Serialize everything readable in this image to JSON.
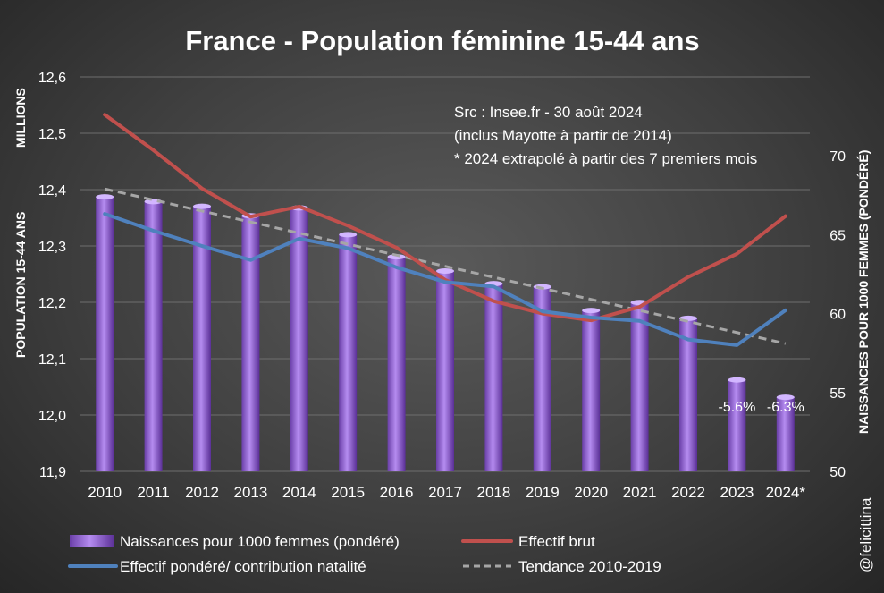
{
  "chart_data": {
    "type": "bar+line",
    "title": "France - Population féminine 15-44 ans",
    "y_left_label": "POPULATION 15-44 ANS",
    "y_left_unit": "MILLIONS",
    "y_right_label": "NAISSANCES POUR 1000 FEMMES (PONDÉRÉ)",
    "credit": "@felicittina",
    "source_lines": [
      "Src : Insee.fr - 30 août 2024",
      "(inclus Mayotte à partir de 2014)",
      "* 2024 extrapolé à partir des 7 premiers mois"
    ],
    "categories": [
      "2010",
      "2011",
      "2012",
      "2013",
      "2014",
      "2015",
      "2016",
      "2017",
      "2018",
      "2019",
      "2020",
      "2021",
      "2022",
      "2023",
      "2024*"
    ],
    "y_left_ticks": [
      "12,6",
      "12,5",
      "12,4",
      "12,3",
      "12,2",
      "12,1",
      "12,0",
      "11,9"
    ],
    "y_left_range": [
      11.9,
      12.6
    ],
    "y_right_ticks": [
      "70",
      "65",
      "60",
      "55",
      "50"
    ],
    "y_right_range": [
      50,
      75
    ],
    "series": [
      {
        "name": "Naissances pour 1000 femmes (pondéré)",
        "type": "bar",
        "axis": "right",
        "color": "#9b6fd6",
        "values": [
          67.4,
          67.1,
          66.8,
          66.2,
          66.7,
          65.0,
          63.6,
          62.7,
          61.9,
          61.7,
          60.2,
          60.7,
          59.7,
          55.8,
          54.7
        ]
      },
      {
        "name": "Effectif brut",
        "type": "line",
        "axis": "left",
        "color": "#c0504d",
        "values": [
          12.533,
          12.47,
          12.402,
          12.352,
          12.37,
          12.336,
          12.297,
          12.24,
          12.202,
          12.18,
          12.168,
          12.192,
          12.245,
          12.286,
          12.353
        ]
      },
      {
        "name": "Effectif pondéré/ contribution natalité",
        "type": "line",
        "axis": "left",
        "color": "#4f81bd",
        "values": [
          12.357,
          12.327,
          12.3,
          12.275,
          12.313,
          12.296,
          12.262,
          12.236,
          12.228,
          12.184,
          12.173,
          12.167,
          12.134,
          12.124,
          12.186
        ]
      },
      {
        "name": "Tendance 2010-2019",
        "type": "line",
        "axis": "right",
        "color": "#a6a6a6",
        "dashed": true,
        "values": [
          67.9,
          67.2,
          66.5,
          65.8,
          65.1,
          64.4,
          63.7,
          63.0,
          62.3,
          61.6,
          60.9,
          60.2,
          59.5,
          58.8,
          58.1
        ]
      }
    ],
    "annotations": [
      {
        "category": "2023",
        "text": "-5.6%"
      },
      {
        "category": "2024*",
        "text": "-6.3%"
      }
    ]
  }
}
